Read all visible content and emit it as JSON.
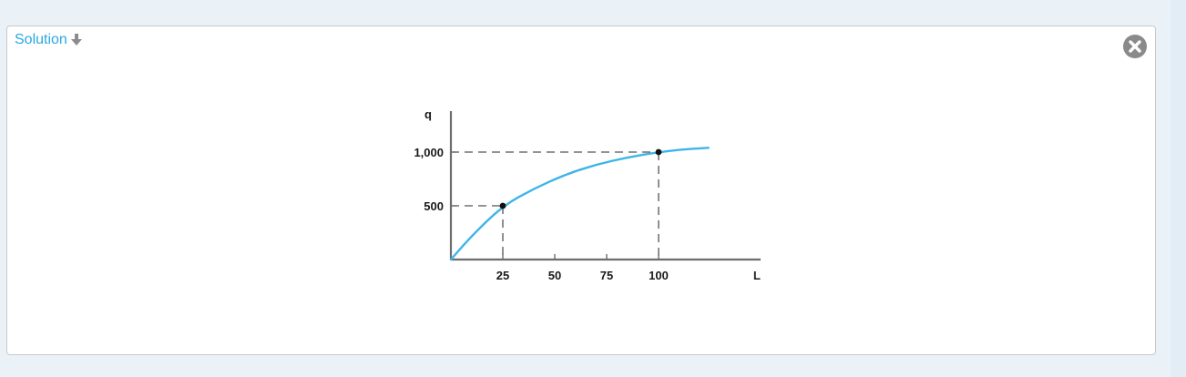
{
  "panel": {
    "toggle_label": "Solution",
    "toggle_icon": "arrow-down-icon",
    "close_icon": "close-circle-icon",
    "accent_color": "#29a9e1"
  },
  "chart_data": {
    "type": "line",
    "title": "",
    "xlabel": "L",
    "ylabel": "q",
    "x_ticks": [
      25,
      50,
      75,
      100
    ],
    "x_tick_labels": [
      "25",
      "50",
      "75",
      "100"
    ],
    "y_ticks": [
      500,
      1000
    ],
    "y_tick_labels": [
      "500",
      "1,000"
    ],
    "xlim": [
      0,
      150
    ],
    "ylim": [
      0,
      1450
    ],
    "grid": false,
    "series_color": "#3db5e8",
    "curve": [
      {
        "x": 0,
        "y": 0
      },
      {
        "x": 10,
        "y": 220
      },
      {
        "x": 25,
        "y": 500
      },
      {
        "x": 40,
        "y": 660
      },
      {
        "x": 55,
        "y": 790
      },
      {
        "x": 70,
        "y": 885
      },
      {
        "x": 85,
        "y": 950
      },
      {
        "x": 100,
        "y": 1000
      },
      {
        "x": 112,
        "y": 1025
      },
      {
        "x": 124,
        "y": 1040
      }
    ],
    "highlighted_points": [
      {
        "x": 25,
        "y": 500
      },
      {
        "x": 100,
        "y": 1000
      }
    ]
  }
}
